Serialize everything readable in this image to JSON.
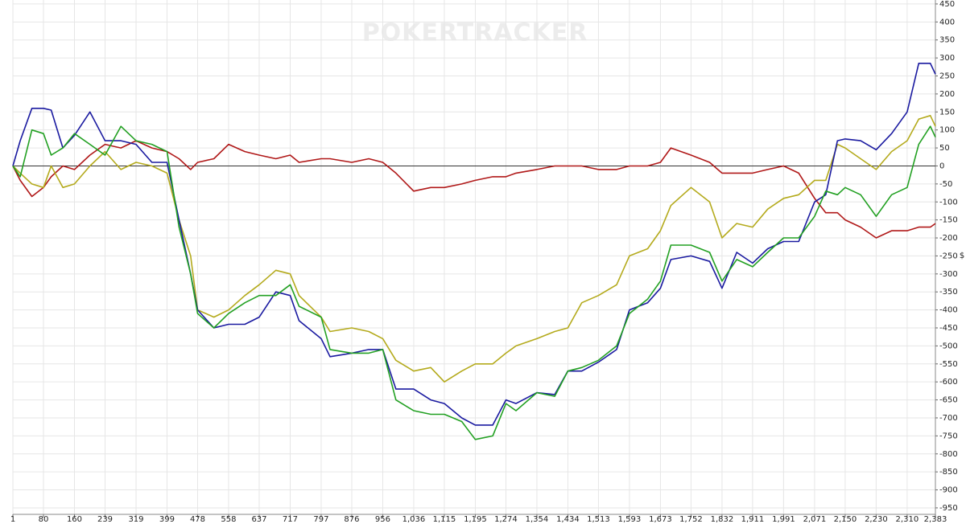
{
  "chart_data": {
    "type": "line",
    "watermark": "POKERTRACKER",
    "y_label": "$",
    "grid": true,
    "zero_line": true,
    "xlim": [
      1,
      2383
    ],
    "ylim": [
      -968,
      461
    ],
    "xticks": [
      1,
      80,
      160,
      239,
      319,
      399,
      478,
      558,
      637,
      717,
      797,
      876,
      956,
      {
        "value": 1036,
        "label": "1,036"
      },
      {
        "value": 1115,
        "label": "1,115"
      },
      {
        "value": 1195,
        "label": "1,195"
      },
      {
        "value": 1274,
        "label": "1,274"
      },
      {
        "value": 1354,
        "label": "1,354"
      },
      {
        "value": 1434,
        "label": "1,434"
      },
      {
        "value": 1513,
        "label": "1,513"
      },
      {
        "value": 1593,
        "label": "1,593"
      },
      {
        "value": 1673,
        "label": "1,673"
      },
      {
        "value": 1752,
        "label": "1,752"
      },
      {
        "value": 1832,
        "label": "1,832"
      },
      {
        "value": 1911,
        "label": "1,911"
      },
      {
        "value": 1991,
        "label": "1,991"
      },
      {
        "value": 2071,
        "label": "2,071"
      },
      {
        "value": 2150,
        "label": "2,150"
      },
      {
        "value": 2230,
        "label": "2,230"
      },
      {
        "value": 2310,
        "label": "2,310"
      },
      {
        "value": 2383,
        "label": "2,383"
      }
    ],
    "yticks": [
      -950,
      -900,
      -850,
      -800,
      -750,
      -700,
      -650,
      -600,
      -550,
      -500,
      -450,
      -400,
      -350,
      -300,
      -250,
      -200,
      -150,
      -100,
      -50,
      0,
      50,
      100,
      150,
      200,
      250,
      300,
      350,
      400,
      450
    ],
    "x": [
      1,
      20,
      50,
      80,
      100,
      130,
      160,
      200,
      239,
      280,
      319,
      360,
      399,
      430,
      460,
      478,
      520,
      558,
      600,
      637,
      680,
      717,
      740,
      797,
      820,
      876,
      920,
      956,
      990,
      1036,
      1080,
      1115,
      1160,
      1195,
      1240,
      1274,
      1300,
      1354,
      1400,
      1434,
      1470,
      1513,
      1560,
      1593,
      1640,
      1673,
      1700,
      1752,
      1800,
      1832,
      1870,
      1911,
      1950,
      1991,
      2030,
      2071,
      2100,
      2130,
      2150,
      2190,
      2230,
      2270,
      2310,
      2340,
      2370,
      2383
    ],
    "series": [
      {
        "color": "#b01818",
        "values": [
          0,
          -40,
          -85,
          -60,
          -30,
          0,
          -10,
          30,
          60,
          50,
          70,
          50,
          40,
          20,
          -10,
          10,
          20,
          60,
          40,
          30,
          20,
          30,
          10,
          20,
          20,
          10,
          20,
          10,
          -20,
          -70,
          -60,
          -60,
          -50,
          -40,
          -30,
          -30,
          -20,
          -10,
          0,
          0,
          0,
          -10,
          -10,
          0,
          0,
          10,
          50,
          30,
          10,
          -20,
          -20,
          -20,
          -10,
          0,
          -20,
          -90,
          -130,
          -130,
          -150,
          -170,
          -200,
          -180,
          -180,
          -170,
          -170,
          -160
        ]
      },
      {
        "color": "#b4aa1c",
        "values": [
          0,
          -20,
          -50,
          -60,
          0,
          -60,
          -50,
          0,
          40,
          -10,
          10,
          0,
          -20,
          -150,
          -250,
          -400,
          -420,
          -400,
          -360,
          -330,
          -290,
          -300,
          -360,
          -420,
          -460,
          -450,
          -460,
          -480,
          -540,
          -570,
          -560,
          -600,
          -570,
          -550,
          -550,
          -520,
          -500,
          -480,
          -460,
          -450,
          -380,
          -360,
          -330,
          -250,
          -230,
          -180,
          -110,
          -60,
          -100,
          -200,
          -160,
          -170,
          -120,
          -90,
          -80,
          -40,
          -40,
          60,
          50,
          20,
          -10,
          40,
          70,
          130,
          140,
          110
        ]
      },
      {
        "color": "#1a1aa0",
        "values": [
          0,
          70,
          160,
          160,
          155,
          50,
          85,
          150,
          70,
          70,
          60,
          10,
          10,
          -150,
          -300,
          -400,
          -450,
          -440,
          -440,
          -420,
          -350,
          -360,
          -430,
          -480,
          -530,
          -520,
          -510,
          -510,
          -620,
          -620,
          -650,
          -660,
          -700,
          -720,
          -720,
          -650,
          -660,
          -630,
          -635,
          -570,
          -570,
          -545,
          -510,
          -400,
          -380,
          -340,
          -260,
          -250,
          -265,
          -340,
          -240,
          -270,
          -230,
          -210,
          -210,
          -100,
          -80,
          70,
          75,
          70,
          45,
          90,
          150,
          285,
          285,
          255
        ]
      },
      {
        "color": "#22a022",
        "values": [
          0,
          -30,
          100,
          90,
          30,
          50,
          90,
          60,
          30,
          110,
          70,
          60,
          40,
          -170,
          -300,
          -410,
          -450,
          -410,
          -380,
          -360,
          -360,
          -330,
          -390,
          -420,
          -510,
          -520,
          -520,
          -510,
          -650,
          -680,
          -690,
          -690,
          -710,
          -760,
          -750,
          -660,
          -680,
          -630,
          -640,
          -570,
          -560,
          -540,
          -500,
          -410,
          -370,
          -320,
          -220,
          -220,
          -240,
          -320,
          -260,
          -280,
          -240,
          -200,
          -200,
          -140,
          -70,
          -80,
          -60,
          -80,
          -140,
          -80,
          -60,
          60,
          110,
          80
        ]
      }
    ]
  }
}
